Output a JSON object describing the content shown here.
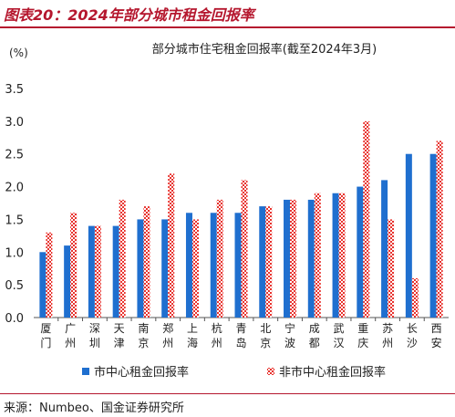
{
  "header": {
    "title": "图表20：2024年部分城市租金回报率"
  },
  "source": "来源：Numbeo、国金证券研究所",
  "colors": {
    "series1": "#1f6fcf",
    "series2_fill": "#ffffff",
    "series2_pattern": "#e8322d",
    "accent": "#b5172e"
  },
  "chart_data": {
    "type": "bar",
    "title": "部分城市住宅租金回报率(截至2024年3月)",
    "ylabel": "(%)",
    "xlabel": "",
    "ylim": [
      0,
      3.5
    ],
    "yticks": [
      "0.0",
      "0.5",
      "1.0",
      "1.5",
      "2.0",
      "2.5",
      "3.0",
      "3.5"
    ],
    "grid": false,
    "legend_position": "bottom",
    "categories": [
      "厦门",
      "广州",
      "深圳",
      "天津",
      "南京",
      "郑州",
      "上海",
      "杭州",
      "青岛",
      "北京",
      "宁波",
      "成都",
      "武汉",
      "重庆",
      "苏州",
      "长沙",
      "西安"
    ],
    "series": [
      {
        "name": "市中心租金回报率",
        "values": [
          1.0,
          1.1,
          1.4,
          1.4,
          1.5,
          1.5,
          1.6,
          1.6,
          1.6,
          1.7,
          1.8,
          1.8,
          1.9,
          2.0,
          2.1,
          2.5,
          2.5
        ]
      },
      {
        "name": "非市中心租金回报率",
        "values": [
          1.3,
          1.6,
          1.4,
          1.8,
          1.7,
          2.2,
          1.5,
          1.8,
          2.1,
          1.7,
          1.8,
          1.9,
          1.9,
          3.0,
          1.5,
          0.6,
          2.7
        ]
      }
    ]
  }
}
